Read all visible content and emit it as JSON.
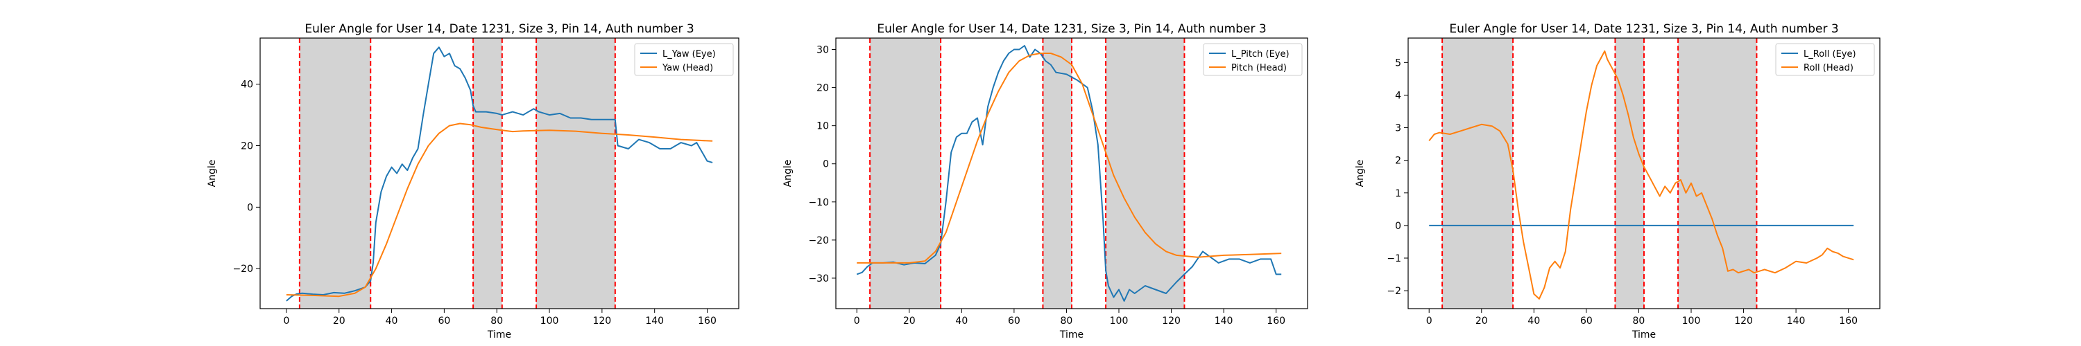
{
  "chart_data": [
    {
      "type": "line",
      "title": "Euler Angle for User 14, Date 1231, Size 3, Pin 14, Auth number 3",
      "xlabel": "Time",
      "ylabel": "Angle",
      "xlim": [
        -10,
        172
      ],
      "ylim": [
        -33,
        55
      ],
      "xticks": [
        0,
        20,
        40,
        60,
        80,
        100,
        120,
        140,
        160
      ],
      "yticks": [
        -20,
        0,
        20,
        40
      ],
      "legend_position": "top-right",
      "shaded_intervals": [
        [
          5,
          32
        ],
        [
          71,
          82
        ],
        [
          95,
          125
        ]
      ],
      "boundary_lines": [
        5,
        32,
        71,
        82,
        95,
        125
      ],
      "series": [
        {
          "name": "L_Yaw (Eye)",
          "color": "#1f77b4",
          "points": [
            [
              0,
              -30.5
            ],
            [
              2,
              -29
            ],
            [
              4,
              -28.2
            ],
            [
              6,
              -28
            ],
            [
              10,
              -28.3
            ],
            [
              14,
              -28.5
            ],
            [
              18,
              -27.8
            ],
            [
              22,
              -28
            ],
            [
              26,
              -27.2
            ],
            [
              30,
              -26
            ],
            [
              32,
              -24
            ],
            [
              33,
              -18
            ],
            [
              34,
              -5
            ],
            [
              36,
              5
            ],
            [
              38,
              10
            ],
            [
              40,
              13
            ],
            [
              42,
              11
            ],
            [
              44,
              14
            ],
            [
              46,
              12
            ],
            [
              48,
              16
            ],
            [
              50,
              19
            ],
            [
              52,
              30
            ],
            [
              54,
              40
            ],
            [
              56,
              50
            ],
            [
              58,
              52
            ],
            [
              60,
              49
            ],
            [
              62,
              50
            ],
            [
              64,
              46
            ],
            [
              66,
              45
            ],
            [
              68,
              42
            ],
            [
              70,
              38
            ],
            [
              71,
              33
            ],
            [
              72,
              31
            ],
            [
              76,
              31
            ],
            [
              80,
              30.5
            ],
            [
              82,
              30
            ],
            [
              86,
              31
            ],
            [
              90,
              30
            ],
            [
              94,
              32
            ],
            [
              96,
              31
            ],
            [
              100,
              30
            ],
            [
              104,
              30.5
            ],
            [
              108,
              29
            ],
            [
              112,
              29
            ],
            [
              116,
              28.5
            ],
            [
              120,
              28.5
            ],
            [
              125,
              28.5
            ],
            [
              126,
              20
            ],
            [
              130,
              19
            ],
            [
              134,
              22
            ],
            [
              138,
              21
            ],
            [
              142,
              19
            ],
            [
              146,
              19
            ],
            [
              150,
              21
            ],
            [
              154,
              20
            ],
            [
              156,
              21
            ],
            [
              158,
              18
            ],
            [
              160,
              15
            ],
            [
              162,
              14.5
            ]
          ]
        },
        {
          "name": "Yaw (Head)",
          "color": "#ff7f0e",
          "points": [
            [
              0,
              -28.5
            ],
            [
              10,
              -28.7
            ],
            [
              20,
              -29
            ],
            [
              26,
              -28
            ],
            [
              30,
              -26
            ],
            [
              34,
              -20
            ],
            [
              38,
              -12
            ],
            [
              42,
              -3
            ],
            [
              46,
              6
            ],
            [
              50,
              14
            ],
            [
              54,
              20
            ],
            [
              58,
              24
            ],
            [
              62,
              26.5
            ],
            [
              66,
              27.2
            ],
            [
              70,
              26.8
            ],
            [
              74,
              26
            ],
            [
              78,
              25.5
            ],
            [
              82,
              25
            ],
            [
              86,
              24.6
            ],
            [
              90,
              24.8
            ],
            [
              100,
              25
            ],
            [
              110,
              24.7
            ],
            [
              120,
              24
            ],
            [
              130,
              23.5
            ],
            [
              140,
              22.8
            ],
            [
              150,
              22
            ],
            [
              162,
              21.5
            ]
          ]
        }
      ]
    },
    {
      "type": "line",
      "title": "Euler Angle for User 14, Date 1231, Size 3, Pin 14, Auth number 3",
      "xlabel": "Time",
      "ylabel": "Angle",
      "xlim": [
        -8,
        172
      ],
      "ylim": [
        -38,
        33
      ],
      "xticks": [
        0,
        20,
        40,
        60,
        80,
        100,
        120,
        140,
        160
      ],
      "yticks": [
        -30,
        -20,
        -10,
        0,
        10,
        20,
        30
      ],
      "legend_position": "top-right",
      "shaded_intervals": [
        [
          5,
          32
        ],
        [
          71,
          82
        ],
        [
          95,
          125
        ]
      ],
      "boundary_lines": [
        5,
        32,
        71,
        82,
        95,
        125
      ],
      "series": [
        {
          "name": "L_Pitch (Eye)",
          "color": "#1f77b4",
          "points": [
            [
              0,
              -29
            ],
            [
              2,
              -28.5
            ],
            [
              4,
              -27
            ],
            [
              6,
              -26
            ],
            [
              10,
              -26
            ],
            [
              14,
              -25.8
            ],
            [
              18,
              -26.5
            ],
            [
              22,
              -26
            ],
            [
              26,
              -26.2
            ],
            [
              30,
              -24
            ],
            [
              32,
              -21
            ],
            [
              34,
              -10
            ],
            [
              36,
              3
            ],
            [
              38,
              7
            ],
            [
              40,
              8
            ],
            [
              42,
              8
            ],
            [
              44,
              11
            ],
            [
              46,
              12
            ],
            [
              48,
              5
            ],
            [
              50,
              15
            ],
            [
              52,
              20
            ],
            [
              54,
              24
            ],
            [
              56,
              27
            ],
            [
              58,
              29
            ],
            [
              60,
              30
            ],
            [
              62,
              30
            ],
            [
              64,
              31
            ],
            [
              66,
              28
            ],
            [
              68,
              30
            ],
            [
              70,
              29
            ],
            [
              72,
              27
            ],
            [
              74,
              26
            ],
            [
              76,
              24
            ],
            [
              80,
              23.5
            ],
            [
              84,
              22
            ],
            [
              88,
              20
            ],
            [
              90,
              14
            ],
            [
              92,
              5
            ],
            [
              94,
              -15
            ],
            [
              95,
              -28
            ],
            [
              96,
              -32
            ],
            [
              98,
              -35
            ],
            [
              100,
              -33
            ],
            [
              102,
              -36
            ],
            [
              104,
              -33
            ],
            [
              106,
              -34
            ],
            [
              110,
              -32
            ],
            [
              114,
              -33
            ],
            [
              118,
              -34
            ],
            [
              122,
              -31
            ],
            [
              125,
              -29
            ],
            [
              128,
              -27
            ],
            [
              130,
              -25
            ],
            [
              132,
              -23
            ],
            [
              134,
              -24
            ],
            [
              138,
              -26
            ],
            [
              142,
              -25
            ],
            [
              146,
              -25
            ],
            [
              150,
              -26
            ],
            [
              154,
              -25
            ],
            [
              158,
              -25
            ],
            [
              160,
              -29
            ],
            [
              162,
              -29
            ]
          ]
        },
        {
          "name": "Pitch (Head)",
          "color": "#ff7f0e",
          "points": [
            [
              0,
              -26
            ],
            [
              10,
              -26
            ],
            [
              20,
              -26
            ],
            [
              26,
              -25.5
            ],
            [
              30,
              -23
            ],
            [
              34,
              -18
            ],
            [
              38,
              -10
            ],
            [
              42,
              -2
            ],
            [
              46,
              6
            ],
            [
              50,
              13
            ],
            [
              54,
              19
            ],
            [
              58,
              24
            ],
            [
              62,
              27
            ],
            [
              66,
              28.5
            ],
            [
              70,
              29
            ],
            [
              74,
              29
            ],
            [
              78,
              28
            ],
            [
              82,
              26
            ],
            [
              86,
              21
            ],
            [
              90,
              13
            ],
            [
              94,
              5
            ],
            [
              98,
              -3
            ],
            [
              102,
              -9
            ],
            [
              106,
              -14
            ],
            [
              110,
              -18
            ],
            [
              114,
              -21
            ],
            [
              118,
              -23
            ],
            [
              122,
              -24
            ],
            [
              130,
              -24.5
            ],
            [
              140,
              -24
            ],
            [
              150,
              -23.8
            ],
            [
              162,
              -23.5
            ]
          ]
        }
      ]
    },
    {
      "type": "line",
      "title": "Euler Angle for User 14, Date 1231, Size 3, Pin 14, Auth number 3",
      "xlabel": "Time",
      "ylabel": "Angle",
      "xlim": [
        -8,
        172
      ],
      "ylim": [
        -2.55,
        5.75
      ],
      "xticks": [
        0,
        20,
        40,
        60,
        80,
        100,
        120,
        140,
        160
      ],
      "yticks": [
        -2,
        -1,
        0,
        1,
        2,
        3,
        4,
        5
      ],
      "legend_position": "top-right",
      "shaded_intervals": [
        [
          5,
          32
        ],
        [
          71,
          82
        ],
        [
          95,
          125
        ]
      ],
      "boundary_lines": [
        5,
        32,
        71,
        82,
        95,
        125
      ],
      "series": [
        {
          "name": "L_Roll (Eye)",
          "color": "#1f77b4",
          "points": [
            [
              0,
              0
            ],
            [
              162,
              0
            ]
          ]
        },
        {
          "name": "Roll (Head)",
          "color": "#ff7f0e",
          "points": [
            [
              0,
              2.6
            ],
            [
              2,
              2.8
            ],
            [
              4,
              2.85
            ],
            [
              8,
              2.8
            ],
            [
              12,
              2.9
            ],
            [
              16,
              3
            ],
            [
              20,
              3.1
            ],
            [
              24,
              3.05
            ],
            [
              27,
              2.9
            ],
            [
              30,
              2.5
            ],
            [
              32,
              1.7
            ],
            [
              34,
              0.5
            ],
            [
              36,
              -0.5
            ],
            [
              38,
              -1.3
            ],
            [
              40,
              -2.1
            ],
            [
              42,
              -2.25
            ],
            [
              44,
              -1.9
            ],
            [
              46,
              -1.3
            ],
            [
              48,
              -1.1
            ],
            [
              50,
              -1.3
            ],
            [
              52,
              -0.8
            ],
            [
              54,
              0.5
            ],
            [
              56,
              1.5
            ],
            [
              58,
              2.5
            ],
            [
              60,
              3.5
            ],
            [
              62,
              4.3
            ],
            [
              64,
              4.9
            ],
            [
              66,
              5.2
            ],
            [
              67,
              5.35
            ],
            [
              68,
              5.1
            ],
            [
              70,
              4.8
            ],
            [
              72,
              4.5
            ],
            [
              74,
              4
            ],
            [
              76,
              3.4
            ],
            [
              78,
              2.7
            ],
            [
              80,
              2.2
            ],
            [
              82,
              1.8
            ],
            [
              84,
              1.5
            ],
            [
              86,
              1.2
            ],
            [
              88,
              0.9
            ],
            [
              90,
              1.2
            ],
            [
              92,
              1
            ],
            [
              94,
              1.3
            ],
            [
              96,
              1.4
            ],
            [
              98,
              1
            ],
            [
              100,
              1.3
            ],
            [
              102,
              0.9
            ],
            [
              104,
              1
            ],
            [
              106,
              0.6
            ],
            [
              108,
              0.2
            ],
            [
              110,
              -0.3
            ],
            [
              112,
              -0.7
            ],
            [
              114,
              -1.4
            ],
            [
              116,
              -1.35
            ],
            [
              118,
              -1.45
            ],
            [
              120,
              -1.4
            ],
            [
              122,
              -1.35
            ],
            [
              124,
              -1.45
            ],
            [
              128,
              -1.35
            ],
            [
              132,
              -1.45
            ],
            [
              136,
              -1.3
            ],
            [
              140,
              -1.1
            ],
            [
              144,
              -1.15
            ],
            [
              148,
              -1
            ],
            [
              150,
              -0.9
            ],
            [
              152,
              -0.7
            ],
            [
              154,
              -0.8
            ],
            [
              156,
              -0.85
            ],
            [
              158,
              -0.95
            ],
            [
              162,
              -1.05
            ]
          ]
        }
      ]
    }
  ]
}
